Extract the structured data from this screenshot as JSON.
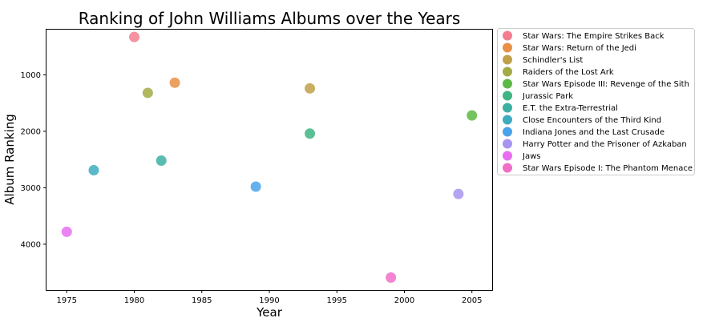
{
  "chart_data": {
    "type": "scatter",
    "title": "Ranking of John Williams Albums over the Years",
    "xlabel": "Year",
    "ylabel": "Album Ranking",
    "xlim": [
      1973.5,
      2006.5
    ],
    "ylim": [
      4810,
      200
    ],
    "y_inverted": true,
    "x_ticks": [
      1975,
      1980,
      1985,
      1990,
      1995,
      2000,
      2005
    ],
    "y_ticks": [
      1000,
      2000,
      3000,
      4000
    ],
    "grid": false,
    "legend_position": "outside-right-top",
    "series": [
      {
        "name": "Star Wars: The Empire Strikes Back",
        "color": "#f37e8f",
        "x": 1980,
        "y": 330
      },
      {
        "name": "Star Wars: Return of the Jedi",
        "color": "#e89045",
        "x": 1983,
        "y": 1140
      },
      {
        "name": "Schindler's List",
        "color": "#c0a048",
        "x": 1993,
        "y": 1240
      },
      {
        "name": "Raiders of the Lost Ark",
        "color": "#a3ab45",
        "x": 1981,
        "y": 1320
      },
      {
        "name": "Star Wars Episode III: Revenge of the Sith",
        "color": "#5cb945",
        "x": 2005,
        "y": 1720
      },
      {
        "name": "Jurassic Park",
        "color": "#3fb583",
        "x": 1993,
        "y": 2040
      },
      {
        "name": "E.T. the Extra-Terrestrial",
        "color": "#3cb0a2",
        "x": 1982,
        "y": 2520
      },
      {
        "name": "Close Encounters of the Third Kind",
        "color": "#3eacc0",
        "x": 1977,
        "y": 2690
      },
      {
        "name": "Indiana Jones and the Last Crusade",
        "color": "#4aa3ea",
        "x": 1989,
        "y": 2980
      },
      {
        "name": "Harry Potter and the Prisoner of Azkaban",
        "color": "#a895ef",
        "x": 2004,
        "y": 3110
      },
      {
        "name": "Jaws",
        "color": "#e76ef1",
        "x": 1975,
        "y": 3780
      },
      {
        "name": "Star Wars Episode I: The Phantom Menace",
        "color": "#f16ec9",
        "x": 1999,
        "y": 4590
      }
    ]
  }
}
